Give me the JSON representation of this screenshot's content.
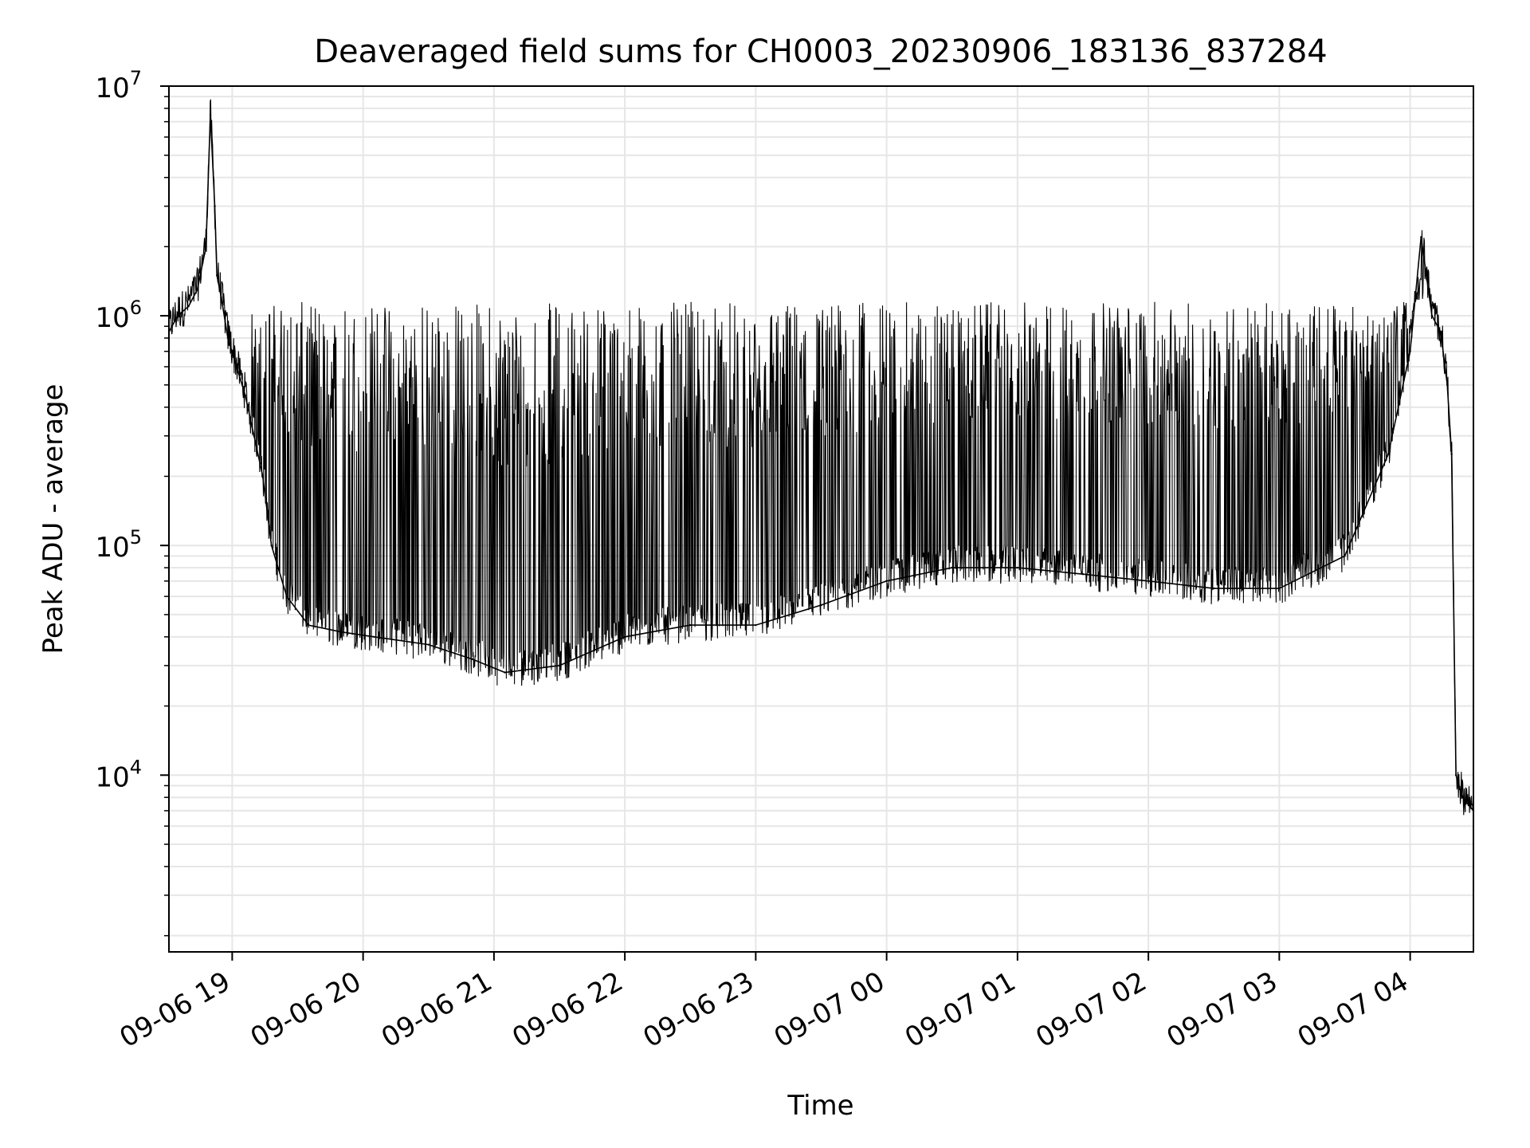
{
  "chart_data": {
    "type": "line",
    "title": "Deaveraged field sums for CH0003_20230906_183136_837284",
    "xlabel": "Time",
    "ylabel": "Peak ADU - average",
    "yscale": "log",
    "xlim": [
      "2023-09-06 18:31",
      "2023-09-07 04:29"
    ],
    "ylim": [
      1700,
      10000000
    ],
    "y_ticks": [
      {
        "value": 10000,
        "base": "10",
        "exp": "4"
      },
      {
        "value": 100000,
        "base": "10",
        "exp": "5"
      },
      {
        "value": 1000000,
        "base": "10",
        "exp": "6"
      },
      {
        "value": 10000000,
        "base": "10",
        "exp": "7"
      }
    ],
    "x_ticks": [
      {
        "value": "2023-09-06 19:00",
        "label": "09-06 19"
      },
      {
        "value": "2023-09-06 20:00",
        "label": "09-06 20"
      },
      {
        "value": "2023-09-06 21:00",
        "label": "09-06 21"
      },
      {
        "value": "2023-09-06 22:00",
        "label": "09-06 22"
      },
      {
        "value": "2023-09-06 23:00",
        "label": "09-06 23"
      },
      {
        "value": "2023-09-07 00:00",
        "label": "09-07 00"
      },
      {
        "value": "2023-09-07 01:00",
        "label": "09-07 01"
      },
      {
        "value": "2023-09-07 02:00",
        "label": "09-07 02"
      },
      {
        "value": "2023-09-07 03:00",
        "label": "09-07 03"
      },
      {
        "value": "2023-09-07 04:00",
        "label": "09-07 04"
      }
    ],
    "grid": true,
    "legend": "none",
    "series_color": "#000000",
    "grid_color": "#e6e6e6",
    "series": [
      {
        "x": [
          "2023-09-06 18:31",
          "2023-09-06 18:35",
          "2023-09-06 18:40",
          "2023-09-06 18:44",
          "2023-09-06 18:48",
          "2023-09-06 18:50",
          "2023-09-06 18:52",
          "2023-09-06 18:53",
          "2023-09-06 18:55",
          "2023-09-06 18:58",
          "2023-09-06 19:02",
          "2023-09-06 19:06",
          "2023-09-06 19:10",
          "2023-09-06 19:14",
          "2023-09-06 19:18",
          "2023-09-06 19:25",
          "2023-09-06 19:35",
          "2023-09-06 19:50",
          "2023-09-06 20:05",
          "2023-09-06 20:30",
          "2023-09-06 20:50",
          "2023-09-06 21:05",
          "2023-09-06 21:30",
          "2023-09-06 22:00",
          "2023-09-06 22:30",
          "2023-09-06 23:00",
          "2023-09-06 23:30",
          "2023-09-07 00:00",
          "2023-09-07 00:30",
          "2023-09-07 01:00",
          "2023-09-07 01:30",
          "2023-09-07 02:00",
          "2023-09-07 02:30",
          "2023-09-07 03:00",
          "2023-09-07 03:30",
          "2023-09-07 03:50",
          "2023-09-07 04:00",
          "2023-09-07 04:05",
          "2023-09-07 04:10",
          "2023-09-07 04:14",
          "2023-09-07 04:17",
          "2023-09-07 04:19",
          "2023-09-07 04:21",
          "2023-09-07 04:24",
          "2023-09-07 04:29"
        ],
        "y": [
          850000,
          1000000,
          1100000,
          1300000,
          2000000,
          7500000,
          3000000,
          1500000,
          1200000,
          800000,
          600000,
          450000,
          300000,
          200000,
          100000,
          60000,
          45000,
          42000,
          40000,
          37000,
          32000,
          28000,
          30000,
          40000,
          45000,
          45000,
          55000,
          70000,
          80000,
          80000,
          75000,
          70000,
          65000,
          65000,
          90000,
          250000,
          700000,
          2200000,
          1000000,
          850000,
          500000,
          250000,
          10000,
          8000,
          7000
        ]
      }
    ]
  }
}
